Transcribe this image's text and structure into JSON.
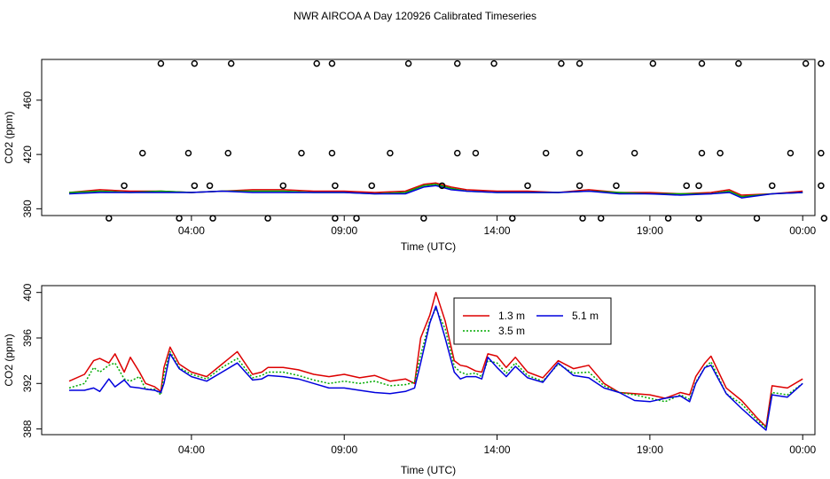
{
  "title": "NWR AIRCOA A  Day 120926  Calibrated Timeseries",
  "chart_data": [
    {
      "type": "scatter",
      "xlabel": "Time (UTC)",
      "ylabel": "CO2 (ppm)",
      "x_ticks": [
        "04:00",
        "09:00",
        "14:00",
        "19:00",
        "00:00"
      ],
      "x_tick_hours": [
        4,
        9,
        14,
        19,
        24
      ],
      "xlim": [
        -0.9,
        24.4
      ],
      "y_ticks": [
        380,
        420,
        460
      ],
      "ylim": [
        375,
        490
      ],
      "grid": false,
      "scatter_points": [
        {
          "x": 1.3,
          "y": 373
        },
        {
          "x": 1.8,
          "y": 397
        },
        {
          "x": 2.4,
          "y": 421
        },
        {
          "x": 3.0,
          "y": 487
        },
        {
          "x": 3.6,
          "y": 373
        },
        {
          "x": 4.1,
          "y": 397
        },
        {
          "x": 4.7,
          "y": 373
        },
        {
          "x": 3.9,
          "y": 421
        },
        {
          "x": 4.1,
          "y": 487
        },
        {
          "x": 4.6,
          "y": 397
        },
        {
          "x": 5.2,
          "y": 421
        },
        {
          "x": 5.3,
          "y": 487
        },
        {
          "x": 6.5,
          "y": 373
        },
        {
          "x": 7.0,
          "y": 397
        },
        {
          "x": 7.6,
          "y": 421
        },
        {
          "x": 8.1,
          "y": 487
        },
        {
          "x": 8.6,
          "y": 487
        },
        {
          "x": 8.6,
          "y": 421
        },
        {
          "x": 8.7,
          "y": 397
        },
        {
          "x": 8.7,
          "y": 373
        },
        {
          "x": 9.4,
          "y": 373
        },
        {
          "x": 9.9,
          "y": 397
        },
        {
          "x": 10.5,
          "y": 421
        },
        {
          "x": 11.1,
          "y": 487
        },
        {
          "x": 11.6,
          "y": 373
        },
        {
          "x": 12.2,
          "y": 397
        },
        {
          "x": 12.7,
          "y": 421
        },
        {
          "x": 12.7,
          "y": 487
        },
        {
          "x": 13.3,
          "y": 421
        },
        {
          "x": 13.9,
          "y": 487
        },
        {
          "x": 14.5,
          "y": 373
        },
        {
          "x": 15.0,
          "y": 397
        },
        {
          "x": 15.6,
          "y": 421
        },
        {
          "x": 16.1,
          "y": 487
        },
        {
          "x": 16.7,
          "y": 487
        },
        {
          "x": 16.7,
          "y": 421
        },
        {
          "x": 16.7,
          "y": 397
        },
        {
          "x": 16.8,
          "y": 373
        },
        {
          "x": 17.4,
          "y": 373
        },
        {
          "x": 17.9,
          "y": 397
        },
        {
          "x": 18.5,
          "y": 421
        },
        {
          "x": 19.1,
          "y": 487
        },
        {
          "x": 19.6,
          "y": 373
        },
        {
          "x": 20.2,
          "y": 397
        },
        {
          "x": 20.6,
          "y": 397
        },
        {
          "x": 20.6,
          "y": 373
        },
        {
          "x": 20.7,
          "y": 421
        },
        {
          "x": 20.7,
          "y": 487
        },
        {
          "x": 21.3,
          "y": 421
        },
        {
          "x": 21.9,
          "y": 487
        },
        {
          "x": 22.5,
          "y": 373
        },
        {
          "x": 23.0,
          "y": 397
        },
        {
          "x": 23.6,
          "y": 421
        },
        {
          "x": 24.1,
          "y": 487
        },
        {
          "x": 24.6,
          "y": 487
        },
        {
          "x": 24.6,
          "y": 421
        },
        {
          "x": 24.6,
          "y": 397
        },
        {
          "x": 24.7,
          "y": 373
        }
      ],
      "series": [
        {
          "color": "#dd0000",
          "x": [
            0.0,
            1.0,
            2.0,
            3.0,
            4.0,
            5.0,
            6.0,
            7.0,
            8.0,
            9.0,
            10.0,
            11.0,
            11.6,
            12.0,
            12.5,
            13.0,
            14.0,
            15.0,
            16.0,
            17.0,
            18.0,
            19.0,
            20.0,
            21.0,
            21.6,
            22.0,
            23.0,
            24.0
          ],
          "y": [
            392,
            394,
            393,
            393,
            392,
            393,
            394,
            394,
            393,
            393,
            392,
            393,
            398,
            399,
            396,
            394,
            393,
            393,
            392,
            394,
            392,
            392,
            391,
            392,
            394,
            390,
            391,
            393
          ]
        },
        {
          "color": "#00aa00",
          "x": [
            0.0,
            1.0,
            2.0,
            3.0,
            4.0,
            5.0,
            6.0,
            7.0,
            8.0,
            9.0,
            10.0,
            11.0,
            11.6,
            12.0,
            12.5,
            13.0,
            14.0,
            15.0,
            16.0,
            17.0,
            18.0,
            19.0,
            20.0,
            21.0,
            21.6,
            22.0,
            23.0,
            24.0
          ],
          "y": [
            392,
            393,
            392,
            393,
            392,
            393,
            393,
            393,
            392,
            392,
            391,
            392,
            397,
            398,
            395,
            393,
            392,
            392,
            392,
            393,
            392,
            391,
            391,
            391,
            393,
            389,
            391,
            392
          ]
        },
        {
          "color": "#0000dd",
          "x": [
            0.0,
            1.0,
            2.0,
            3.0,
            4.0,
            5.0,
            6.0,
            7.0,
            8.0,
            9.0,
            10.0,
            11.0,
            11.6,
            12.0,
            12.5,
            13.0,
            14.0,
            15.0,
            16.0,
            17.0,
            18.0,
            19.0,
            20.0,
            21.0,
            21.6,
            22.0,
            23.0,
            24.0
          ],
          "y": [
            391,
            392,
            392,
            392,
            392,
            393,
            392,
            392,
            392,
            392,
            391,
            391,
            396,
            397,
            394,
            393,
            392,
            392,
            392,
            393,
            391,
            391,
            390,
            391,
            392,
            388,
            391,
            392
          ]
        }
      ]
    },
    {
      "type": "line",
      "xlabel": "Time (UTC)",
      "ylabel": "CO2 (ppm)",
      "x_ticks": [
        "04:00",
        "09:00",
        "14:00",
        "19:00",
        "00:00"
      ],
      "x_tick_hours": [
        4,
        9,
        14,
        19,
        24
      ],
      "xlim": [
        -0.9,
        24.4
      ],
      "y_ticks": [
        388,
        392,
        396,
        400
      ],
      "ylim": [
        387.5,
        400.6
      ],
      "grid": false,
      "legend": {
        "position": "top-center",
        "columns": 2
      },
      "series": [
        {
          "name": "1.3 m",
          "color": "#dd0000",
          "x": [
            0.0,
            0.5,
            0.8,
            1.0,
            1.3,
            1.5,
            1.8,
            2.0,
            2.3,
            2.5,
            2.8,
            3.0,
            3.1,
            3.3,
            3.6,
            4.0,
            4.5,
            5.0,
            5.5,
            6.0,
            6.3,
            6.5,
            7.0,
            7.5,
            8.0,
            8.5,
            9.0,
            9.5,
            10.0,
            10.5,
            11.0,
            11.3,
            11.5,
            11.8,
            12.0,
            12.3,
            12.6,
            12.8,
            13.0,
            13.3,
            13.5,
            13.7,
            14.0,
            14.3,
            14.6,
            15.0,
            15.5,
            16.0,
            16.5,
            17.0,
            17.5,
            18.0,
            18.5,
            19.0,
            19.5,
            20.0,
            20.3,
            20.5,
            20.8,
            21.0,
            21.5,
            22.0,
            22.5,
            22.8,
            23.0,
            23.5,
            24.0
          ],
          "y": [
            392.2,
            392.8,
            394.0,
            394.2,
            393.8,
            394.6,
            393.0,
            394.3,
            393.0,
            392.0,
            391.7,
            391.3,
            393.4,
            395.2,
            393.7,
            393.0,
            392.6,
            393.7,
            394.8,
            392.8,
            393.0,
            393.4,
            393.4,
            393.2,
            392.8,
            392.6,
            392.8,
            392.5,
            392.7,
            392.2,
            392.4,
            392.0,
            396.0,
            398.0,
            400.0,
            397.5,
            394.0,
            393.6,
            393.5,
            393.1,
            393.0,
            394.6,
            394.4,
            393.4,
            394.3,
            393.0,
            392.5,
            394.0,
            393.3,
            393.6,
            392.0,
            391.2,
            391.1,
            391.0,
            390.7,
            391.2,
            391.0,
            392.6,
            393.8,
            394.4,
            391.6,
            390.5,
            389.0,
            388.2,
            391.8,
            391.6,
            392.4
          ]
        },
        {
          "name": "3.5 m",
          "color": "#00aa00",
          "x": [
            0.0,
            0.5,
            0.8,
            1.0,
            1.3,
            1.5,
            1.8,
            2.0,
            2.3,
            2.5,
            2.8,
            3.0,
            3.1,
            3.3,
            3.6,
            4.0,
            4.5,
            5.0,
            5.5,
            6.0,
            6.3,
            6.5,
            7.0,
            7.5,
            8.0,
            8.5,
            9.0,
            9.5,
            10.0,
            10.5,
            11.0,
            11.3,
            11.5,
            11.8,
            12.0,
            12.3,
            12.6,
            12.8,
            13.0,
            13.3,
            13.5,
            13.7,
            14.0,
            14.3,
            14.6,
            15.0,
            15.5,
            16.0,
            16.5,
            17.0,
            17.5,
            18.0,
            18.5,
            19.0,
            19.5,
            20.0,
            20.3,
            20.5,
            20.8,
            21.0,
            21.5,
            22.0,
            22.5,
            22.8,
            23.0,
            23.5,
            24.0
          ],
          "y": [
            391.6,
            392.0,
            393.4,
            393.0,
            393.6,
            393.8,
            392.4,
            392.2,
            392.6,
            391.5,
            391.5,
            391.0,
            392.8,
            394.8,
            393.4,
            392.8,
            392.4,
            393.4,
            394.2,
            392.5,
            392.7,
            393.0,
            393.0,
            392.7,
            392.3,
            392.0,
            392.2,
            392.0,
            392.2,
            391.8,
            391.9,
            392.1,
            394.5,
            397.5,
            398.6,
            396.8,
            393.5,
            393.0,
            392.8,
            392.9,
            392.6,
            394.0,
            393.8,
            392.9,
            393.8,
            392.7,
            392.2,
            393.7,
            392.9,
            393.0,
            391.8,
            391.2,
            391.0,
            390.7,
            390.4,
            391.0,
            390.6,
            392.1,
            393.4,
            393.9,
            391.1,
            390.2,
            388.8,
            388.1,
            391.2,
            391.0,
            392.0
          ]
        },
        {
          "name": "5.1 m",
          "color": "#0000dd",
          "x": [
            0.0,
            0.5,
            0.8,
            1.0,
            1.3,
            1.5,
            1.8,
            2.0,
            2.3,
            2.5,
            2.8,
            3.0,
            3.1,
            3.3,
            3.6,
            4.0,
            4.5,
            5.0,
            5.5,
            6.0,
            6.3,
            6.5,
            7.0,
            7.5,
            8.0,
            8.5,
            9.0,
            9.5,
            10.0,
            10.5,
            11.0,
            11.3,
            11.5,
            11.8,
            12.0,
            12.3,
            12.6,
            12.8,
            13.0,
            13.3,
            13.5,
            13.7,
            14.0,
            14.3,
            14.6,
            15.0,
            15.5,
            16.0,
            16.5,
            17.0,
            17.5,
            18.0,
            18.5,
            19.0,
            19.5,
            20.0,
            20.3,
            20.5,
            20.8,
            21.0,
            21.5,
            22.0,
            22.5,
            22.8,
            23.0,
            23.5,
            24.0
          ],
          "y": [
            391.4,
            391.4,
            391.6,
            391.3,
            392.4,
            391.7,
            392.3,
            391.7,
            391.6,
            391.5,
            391.4,
            391.2,
            392.0,
            394.6,
            393.3,
            392.6,
            392.2,
            393.0,
            393.8,
            392.3,
            392.4,
            392.7,
            392.6,
            392.4,
            392.0,
            391.6,
            391.6,
            391.4,
            391.2,
            391.1,
            391.3,
            391.6,
            393.8,
            397.3,
            398.8,
            396.0,
            393.0,
            392.4,
            392.6,
            392.6,
            392.4,
            394.3,
            393.4,
            392.6,
            393.5,
            392.5,
            392.1,
            393.8,
            392.7,
            392.5,
            391.6,
            391.2,
            390.5,
            390.4,
            390.7,
            390.9,
            390.4,
            392.0,
            393.4,
            393.6,
            391.1,
            389.8,
            388.6,
            387.9,
            391.0,
            390.8,
            392.0
          ]
        }
      ]
    }
  ]
}
